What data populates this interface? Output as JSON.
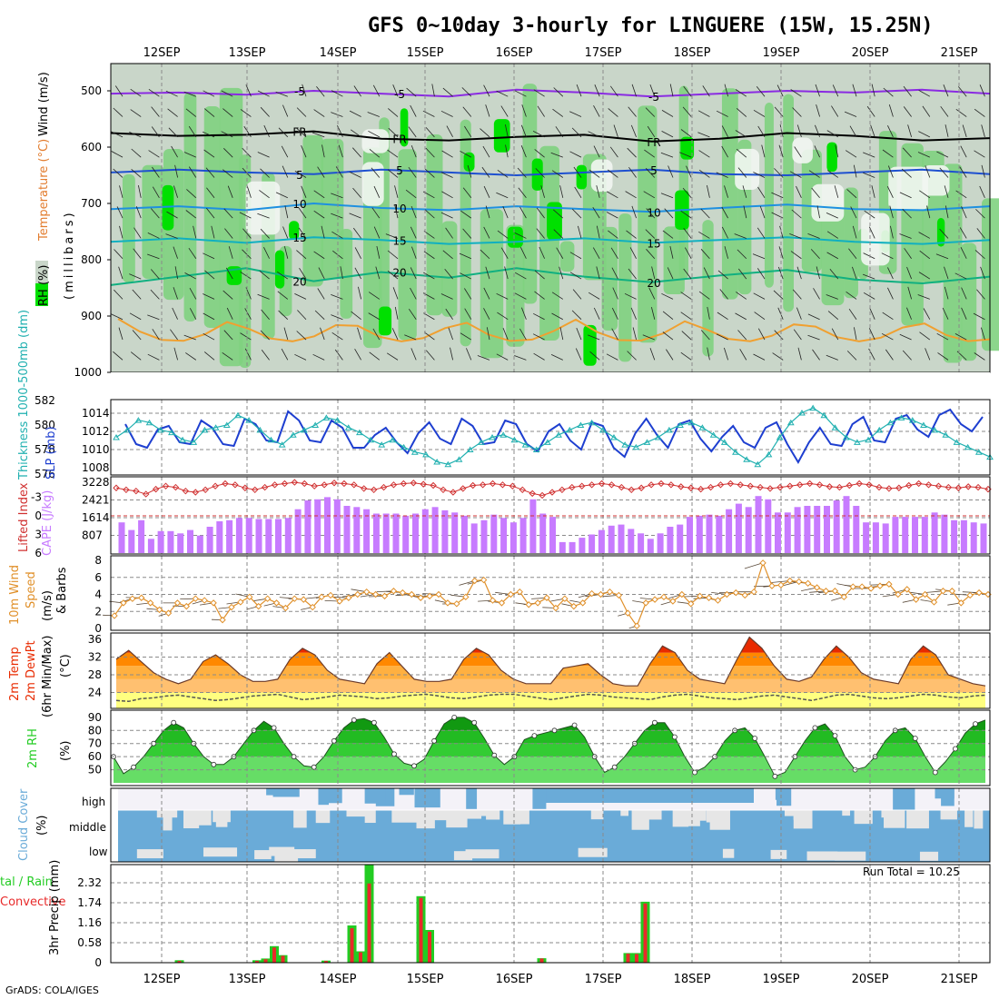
{
  "title": "GFS 0~10day 3-hourly for LINGUERE (15W, 15.25N)",
  "credit": "GrADS: COLA/IGES",
  "dates": [
    "12SEP",
    "13SEP",
    "14SEP",
    "15SEP",
    "16SEP",
    "17SEP",
    "18SEP",
    "19SEP",
    "20SEP",
    "21SEP"
  ],
  "colors": {
    "rh_light": "#c9d6c9",
    "rh_mid": "#7fd17f",
    "rh_high": "#00e000",
    "rh_max": "#00b000",
    "slp": "#1e3fd0",
    "thickness": "#20b0b0",
    "cape": "#c77bff",
    "lifted": "#d03030",
    "wind10": "#e0902a",
    "temp_hot": "#e82a00",
    "temp_warm": "#ff8800",
    "temp_mild": "#ffb040",
    "dewpt_fill": "#ffff80",
    "rh2m": "#22cc22",
    "cloud": "#6aabd8",
    "cloud_gap": "#e6e6e6",
    "precip_total": "#22cc22",
    "precip_conv": "#e82a2a"
  },
  "chart_data": [
    {
      "type": "heatmap",
      "panel": "upper-air",
      "ylabel": "(millibars)",
      "y_ticks": [
        "500",
        "600",
        "700",
        "800",
        "900",
        "1000"
      ],
      "legend_labels": [
        "Wind (m/s)",
        "Temperature (°C)",
        "RH (%)"
      ],
      "contour_labels": [
        "-5",
        "FR",
        "5",
        "10",
        "15",
        "20",
        "-5",
        "FR",
        "5",
        "10",
        "15",
        "20"
      ],
      "isotherms": [
        {
          "label": "-5",
          "p": [
            505,
            503,
            507,
            500,
            505,
            510,
            498,
            503,
            510,
            505,
            500,
            503,
            498,
            505
          ]
        },
        {
          "label": "FR",
          "p": [
            575,
            580,
            578,
            572,
            585,
            588,
            582,
            578,
            590,
            585,
            575,
            580,
            588,
            584
          ]
        },
        {
          "label": "5",
          "p": [
            645,
            640,
            645,
            648,
            640,
            645,
            650,
            645,
            640,
            648,
            650,
            645,
            640,
            648
          ]
        },
        {
          "label": "10",
          "p": [
            710,
            705,
            712,
            700,
            708,
            712,
            705,
            710,
            715,
            708,
            702,
            710,
            712,
            705
          ]
        },
        {
          "label": "15",
          "p": [
            768,
            762,
            770,
            760,
            765,
            772,
            768,
            762,
            770,
            765,
            760,
            768,
            772,
            765
          ]
        },
        {
          "label": "20",
          "p": [
            845,
            830,
            815,
            838,
            822,
            832,
            815,
            830,
            840,
            828,
            818,
            835,
            842,
            830
          ]
        }
      ]
    },
    {
      "type": "line",
      "panel": "slp-thickness",
      "ylabel_left": "Thickness 1000-500mb (dm)",
      "ylabel_right": "SLP (mb)",
      "y_ticks_left": [
        "582",
        "580",
        "578",
        "576"
      ],
      "y_ticks_right": [
        "1014",
        "1012",
        "1010",
        "1008"
      ],
      "series": [
        {
          "name": "SLP",
          "values": [
            1012.8,
            1010.6,
            1010.2,
            1012.2,
            1012.6,
            1010.8,
            1010.6,
            1013.2,
            1012.4,
            1010.6,
            1010.4,
            1013.4,
            1012.8,
            1011.0,
            1010.8,
            1014.2,
            1013.2,
            1011.0,
            1010.8,
            1013.2,
            1012.4,
            1010.2,
            1010.2,
            1011.6,
            1012.4,
            1010.8,
            1009.6,
            1011.8,
            1013.0,
            1011.2,
            1010.6,
            1013.4,
            1012.6,
            1010.6,
            1010.8,
            1013.2,
            1012.8,
            1010.6,
            1009.8,
            1012.0,
            1012.8,
            1011.0,
            1010.0,
            1013.0,
            1012.6,
            1010.2,
            1009.2,
            1011.8,
            1013.4,
            1011.6,
            1010.2,
            1012.8,
            1013.2,
            1011.2,
            1009.8,
            1011.4,
            1012.6,
            1010.8,
            1010.2,
            1012.4,
            1013.0,
            1010.6,
            1008.6,
            1010.8,
            1012.4,
            1010.6,
            1010.4,
            1012.8,
            1013.6,
            1011.0,
            1010.8,
            1013.4,
            1013.8,
            1012.2,
            1011.4,
            1013.8,
            1014.4,
            1012.8,
            1012.0,
            1013.6
          ]
        },
        {
          "name": "Thickness",
          "values": [
            579.0,
            579.6,
            580.4,
            580.2,
            579.6,
            579.4,
            578.8,
            578.6,
            579.6,
            579.8,
            580.0,
            580.8,
            580.4,
            579.6,
            578.8,
            578.4,
            579.2,
            579.6,
            580.0,
            580.6,
            580.4,
            579.8,
            579.4,
            578.8,
            578.4,
            578.8,
            578.2,
            577.8,
            577.6,
            577.0,
            576.8,
            577.2,
            578.0,
            578.6,
            579.0,
            579.2,
            578.8,
            578.4,
            578.0,
            578.6,
            579.2,
            579.6,
            580.0,
            580.2,
            579.6,
            579.0,
            578.4,
            578.2,
            578.6,
            579.0,
            579.6,
            580.0,
            580.2,
            579.8,
            579.2,
            578.6,
            577.8,
            577.2,
            576.8,
            577.6,
            579.0,
            580.2,
            581.0,
            581.4,
            580.8,
            579.8,
            579.0,
            578.6,
            578.8,
            579.6,
            580.2,
            580.6,
            580.4,
            580.0,
            579.6,
            579.2,
            578.6,
            578.2,
            577.8,
            577.4
          ]
        }
      ]
    },
    {
      "type": "bar",
      "panel": "cape-lifted-index",
      "ylabel_left": "Lifted Index",
      "ylabel_right": "CAPE (J/kg)",
      "li_ticks": [
        "-3",
        "0",
        "3",
        "6"
      ],
      "cape_ticks": [
        "3228",
        "2421",
        "1614",
        "807"
      ],
      "series": [
        {
          "name": "CAPE",
          "values": [
            1400,
            1050,
            1500,
            650,
            1000,
            1000,
            900,
            1050,
            800,
            1200,
            1450,
            1500,
            1600,
            1600,
            1550,
            1550,
            1550,
            1600,
            2000,
            2400,
            2450,
            2550,
            2450,
            2150,
            2100,
            2000,
            1800,
            1800,
            1800,
            1700,
            1800,
            2000,
            2100,
            1950,
            1850,
            1700,
            1350,
            1500,
            1750,
            1600,
            1400,
            1600,
            2450,
            1800,
            1650,
            500,
            500,
            700,
            850,
            1050,
            1250,
            1300,
            1100,
            900,
            650,
            900,
            1200,
            1300,
            1650,
            1700,
            1750,
            1700,
            2000,
            2250,
            2100,
            2600,
            2450,
            1850,
            1850,
            2100,
            2150,
            2150,
            2150,
            2400,
            2600,
            2150,
            1400,
            1400,
            1350,
            1650,
            1650,
            1650,
            1650,
            1850,
            1750,
            1500,
            1500,
            1400,
            1350
          ]
        },
        {
          "name": "Lifted Index",
          "values": [
            -4.5,
            -4.2,
            -4.0,
            -3.5,
            -4.3,
            -4.8,
            -4.6,
            -4.0,
            -3.8,
            -4.2,
            -4.8,
            -5.2,
            -5.0,
            -4.5,
            -4.2,
            -4.6,
            -5.0,
            -5.2,
            -5.4,
            -5.2,
            -4.8,
            -5.0,
            -5.3,
            -5.2,
            -5.0,
            -4.4,
            -4.2,
            -4.6,
            -5.0,
            -5.2,
            -5.3,
            -5.1,
            -4.9,
            -4.2,
            -3.8,
            -4.4,
            -4.9,
            -5.0,
            -5.2,
            -5.0,
            -4.8,
            -4.2,
            -3.6,
            -3.3,
            -3.8,
            -4.2,
            -4.6,
            -4.8,
            -5.0,
            -5.2,
            -5.0,
            -4.6,
            -4.2,
            -4.5,
            -5.0,
            -5.2,
            -5.0,
            -4.7,
            -4.5,
            -4.3,
            -4.6,
            -5.0,
            -5.2,
            -5.0,
            -4.8,
            -4.6,
            -4.4,
            -4.6,
            -4.8,
            -5.0,
            -5.2,
            -5.0,
            -4.7,
            -4.6,
            -4.9,
            -5.2,
            -5.0,
            -4.6,
            -4.4,
            -4.5,
            -4.9,
            -5.2,
            -5.0,
            -4.8,
            -4.6,
            -4.5,
            -4.7,
            -4.6,
            -4.3
          ]
        }
      ]
    },
    {
      "type": "line",
      "panel": "wind10m",
      "ylabel": "10m Wind Speed (m/s) & Barbs",
      "y_ticks": [
        "8",
        "6",
        "4",
        "2",
        "0"
      ],
      "series": [
        {
          "name": "10m Wind Speed",
          "values": [
            1.5,
            3.0,
            3.5,
            3.6,
            3.0,
            2.2,
            1.8,
            3.0,
            2.6,
            3.5,
            3.3,
            3.0,
            1.0,
            2.5,
            3.1,
            3.7,
            2.6,
            3.5,
            3.0,
            2.4,
            3.5,
            3.4,
            2.5,
            3.7,
            3.9,
            3.2,
            3.6,
            4.0,
            4.3,
            4.0,
            3.8,
            4.4,
            4.2,
            4.0,
            3.6,
            3.8,
            4.0,
            3.0,
            2.9,
            3.7,
            5.6,
            5.7,
            3.3,
            3.0,
            4.0,
            4.3,
            2.8,
            3.0,
            3.6,
            2.4,
            3.5,
            2.6,
            3.0,
            4.1,
            4.0,
            4.3,
            3.9,
            1.8,
            0.3,
            3.0,
            3.4,
            3.7,
            3.2,
            4.0,
            2.9,
            3.8,
            3.6,
            3.3,
            4.0,
            4.2,
            3.9,
            4.3,
            7.7,
            5.0,
            5.1,
            5.6,
            5.5,
            5.3,
            4.8,
            4.4,
            4.4,
            3.7,
            4.9,
            4.9,
            4.7,
            5.0,
            5.2,
            4.0,
            4.6,
            3.4,
            4.0,
            3.1,
            4.4,
            4.4,
            3.0,
            3.9,
            4.2,
            4.0
          ]
        }
      ]
    },
    {
      "type": "area",
      "panel": "temp2m",
      "ylabel": "2m Temp 2m DewPt (6hr Min/Max) (°C)",
      "y_ticks": [
        "36",
        "32",
        "28",
        "24"
      ],
      "series": [
        {
          "name": "2m Temp",
          "values": [
            31.5,
            33.5,
            31.0,
            28.5,
            27.0,
            26.0,
            27.0,
            31.0,
            32.5,
            30.5,
            28.0,
            26.5,
            26.5,
            27.0,
            31.5,
            34.0,
            32.5,
            29.0,
            27.0,
            26.5,
            26.0,
            30.5,
            33.0,
            30.0,
            27.0,
            26.5,
            26.5,
            27.0,
            31.5,
            34.0,
            32.5,
            29.0,
            27.0,
            26.0,
            26.0,
            26.0,
            29.5,
            30.0,
            30.5,
            28.0,
            26.0,
            25.5,
            25.5,
            30.5,
            34.5,
            33.0,
            29.0,
            27.0,
            26.5,
            26.0,
            31.5,
            36.5,
            34.0,
            30.0,
            27.0,
            26.5,
            27.5,
            31.5,
            34.5,
            32.0,
            28.5,
            27.0,
            26.5,
            26.0,
            31.5,
            34.5,
            32.5,
            28.0,
            27.0,
            26.0,
            25.5
          ]
        },
        {
          "name": "2m DewPt",
          "values": [
            22.2,
            22.0,
            22.6,
            22.8,
            23.2,
            23.4,
            23.0,
            22.6,
            22.2,
            22.4,
            22.8,
            23.2,
            23.4,
            23.6,
            23.0,
            22.4,
            22.6,
            23.0,
            23.4,
            23.2,
            23.0,
            22.6,
            22.8,
            23.2,
            23.4,
            23.6,
            23.2,
            22.8,
            22.6,
            23.0,
            23.4,
            23.6,
            23.6,
            23.2,
            22.8,
            22.4,
            22.8,
            23.2,
            23.6,
            23.4,
            23.0,
            22.8,
            22.6,
            22.4,
            23.0,
            23.4,
            23.6,
            23.2,
            22.8,
            22.6,
            22.4,
            22.8,
            23.2,
            23.4,
            23.0,
            22.6,
            22.2,
            22.8,
            23.4,
            23.6,
            23.2,
            22.8,
            22.6,
            22.8,
            23.2,
            23.6,
            23.4,
            23.0,
            22.8,
            23.2,
            23.4
          ]
        }
      ]
    },
    {
      "type": "area",
      "panel": "rh2m",
      "ylabel": "2m RH (%)",
      "y_ticks": [
        "90",
        "80",
        "70",
        "60",
        "50"
      ],
      "series": [
        {
          "name": "2m RH",
          "values": [
            60,
            47,
            52,
            60,
            70,
            80,
            86,
            82,
            70,
            60,
            54,
            54,
            60,
            70,
            80,
            87,
            82,
            70,
            60,
            53,
            52,
            60,
            72,
            82,
            88,
            89,
            86,
            75,
            62,
            55,
            53,
            58,
            72,
            85,
            90,
            90,
            86,
            74,
            61,
            54,
            60,
            73,
            76,
            78,
            80,
            82,
            84,
            75,
            60,
            48,
            52,
            60,
            70,
            80,
            86,
            86,
            75,
            60,
            48,
            52,
            60,
            72,
            80,
            82,
            74,
            60,
            45,
            48,
            60,
            72,
            82,
            85,
            76,
            60,
            50,
            52,
            60,
            72,
            80,
            82,
            74,
            60,
            48,
            56,
            66,
            78,
            85,
            88
          ]
        }
      ]
    },
    {
      "type": "bar",
      "panel": "cloud-cover",
      "ylabel": "Cloud Cover (%)",
      "layer_labels": [
        "high",
        "middle",
        "low"
      ]
    },
    {
      "type": "bar",
      "panel": "precip",
      "ylabel": "3hr Precip (mm)",
      "legend_labels": [
        "Total / Rain",
        "Convective"
      ],
      "annotation": "Run Total = 10.25",
      "y_ticks": [
        "2.32",
        "1.74",
        "1.16",
        "0.58",
        "0"
      ],
      "series": [
        {
          "name": "Total",
          "values": [
            0,
            0,
            0,
            0,
            0,
            0.07,
            0,
            0,
            0,
            0,
            0,
            0,
            0,
            0,
            0.07,
            0.12,
            0.48,
            0.22,
            0,
            0,
            0,
            0,
            0.06,
            0,
            0,
            1.08,
            0.33,
            2.85,
            0,
            0,
            0,
            0,
            0,
            1.93,
            0.95,
            0,
            0,
            0,
            0,
            0,
            0,
            0,
            0,
            0,
            0,
            0,
            0,
            0.13,
            0,
            0,
            0,
            0,
            0,
            0,
            0,
            0,
            0,
            0.28,
            0.28,
            1.77,
            0
          ]
        },
        {
          "name": "Convective",
          "values": [
            0,
            0,
            0,
            0,
            0,
            0.05,
            0,
            0,
            0,
            0,
            0,
            0,
            0,
            0,
            0.05,
            0.1,
            0.44,
            0.2,
            0,
            0,
            0,
            0,
            0.05,
            0,
            0,
            1.0,
            0.3,
            2.3,
            0,
            0,
            0,
            0,
            0,
            1.88,
            0.9,
            0,
            0,
            0,
            0,
            0,
            0,
            0,
            0,
            0,
            0,
            0,
            0,
            0.12,
            0,
            0,
            0,
            0,
            0,
            0,
            0,
            0,
            0,
            0.26,
            0.25,
            1.72,
            0
          ]
        }
      ]
    }
  ]
}
